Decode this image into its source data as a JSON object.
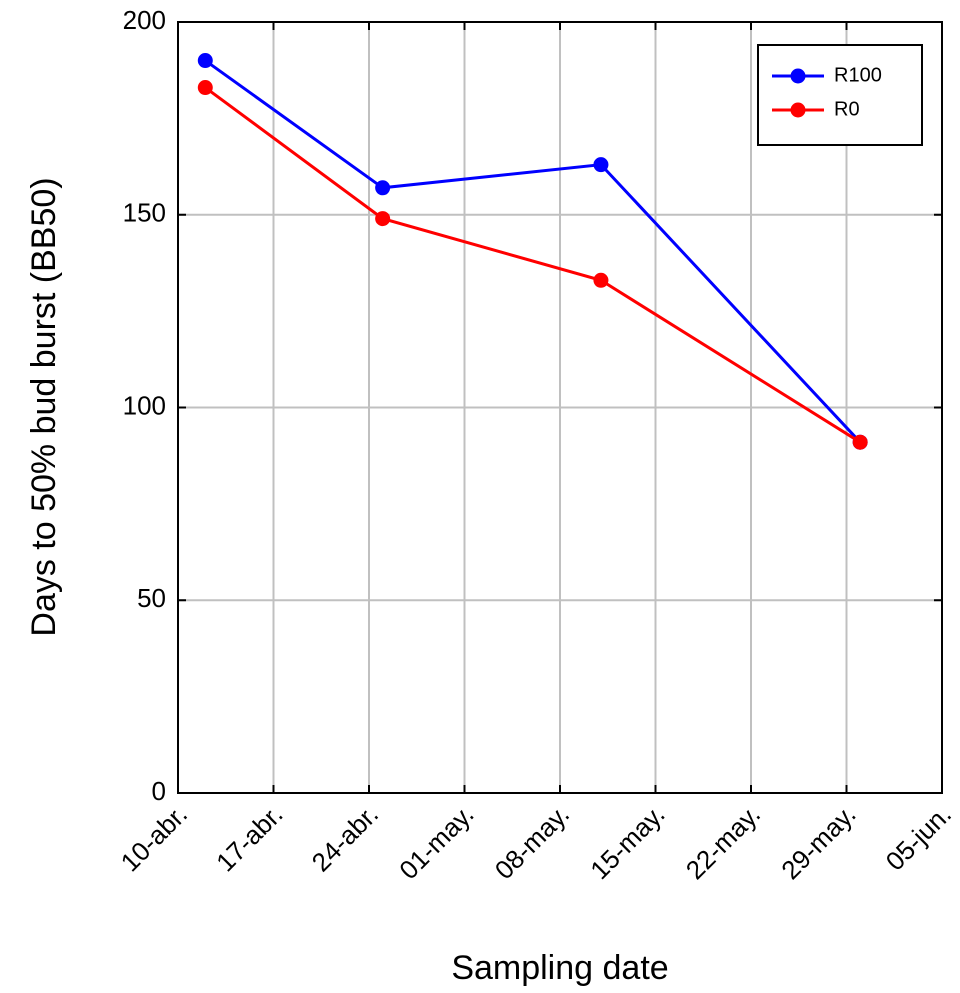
{
  "chart_data": {
    "type": "line",
    "xlabel": "Sampling date",
    "ylabel": "Days to 50% bud burst (BB50)",
    "x": [
      102,
      115,
      131,
      150
    ],
    "xlim": [
      100,
      156
    ],
    "xticks": [
      {
        "value": 100,
        "label": "10-abr."
      },
      {
        "value": 107,
        "label": "17-abr."
      },
      {
        "value": 114,
        "label": "24-abr."
      },
      {
        "value": 121,
        "label": "01-may."
      },
      {
        "value": 128,
        "label": "08-may."
      },
      {
        "value": 135,
        "label": "15-may."
      },
      {
        "value": 142,
        "label": "22-may."
      },
      {
        "value": 149,
        "label": "29-may."
      },
      {
        "value": 156,
        "label": "05-jun."
      }
    ],
    "ylim": [
      0,
      200
    ],
    "yticks": [
      0,
      50,
      100,
      150,
      200
    ],
    "grid": true,
    "legend": "upper right",
    "series": [
      {
        "name": "R100",
        "color": "#0000ff",
        "values": [
          190,
          157,
          163,
          91
        ]
      },
      {
        "name": "R0",
        "color": "#ff0000",
        "values": [
          183,
          149,
          133,
          91
        ]
      }
    ]
  }
}
